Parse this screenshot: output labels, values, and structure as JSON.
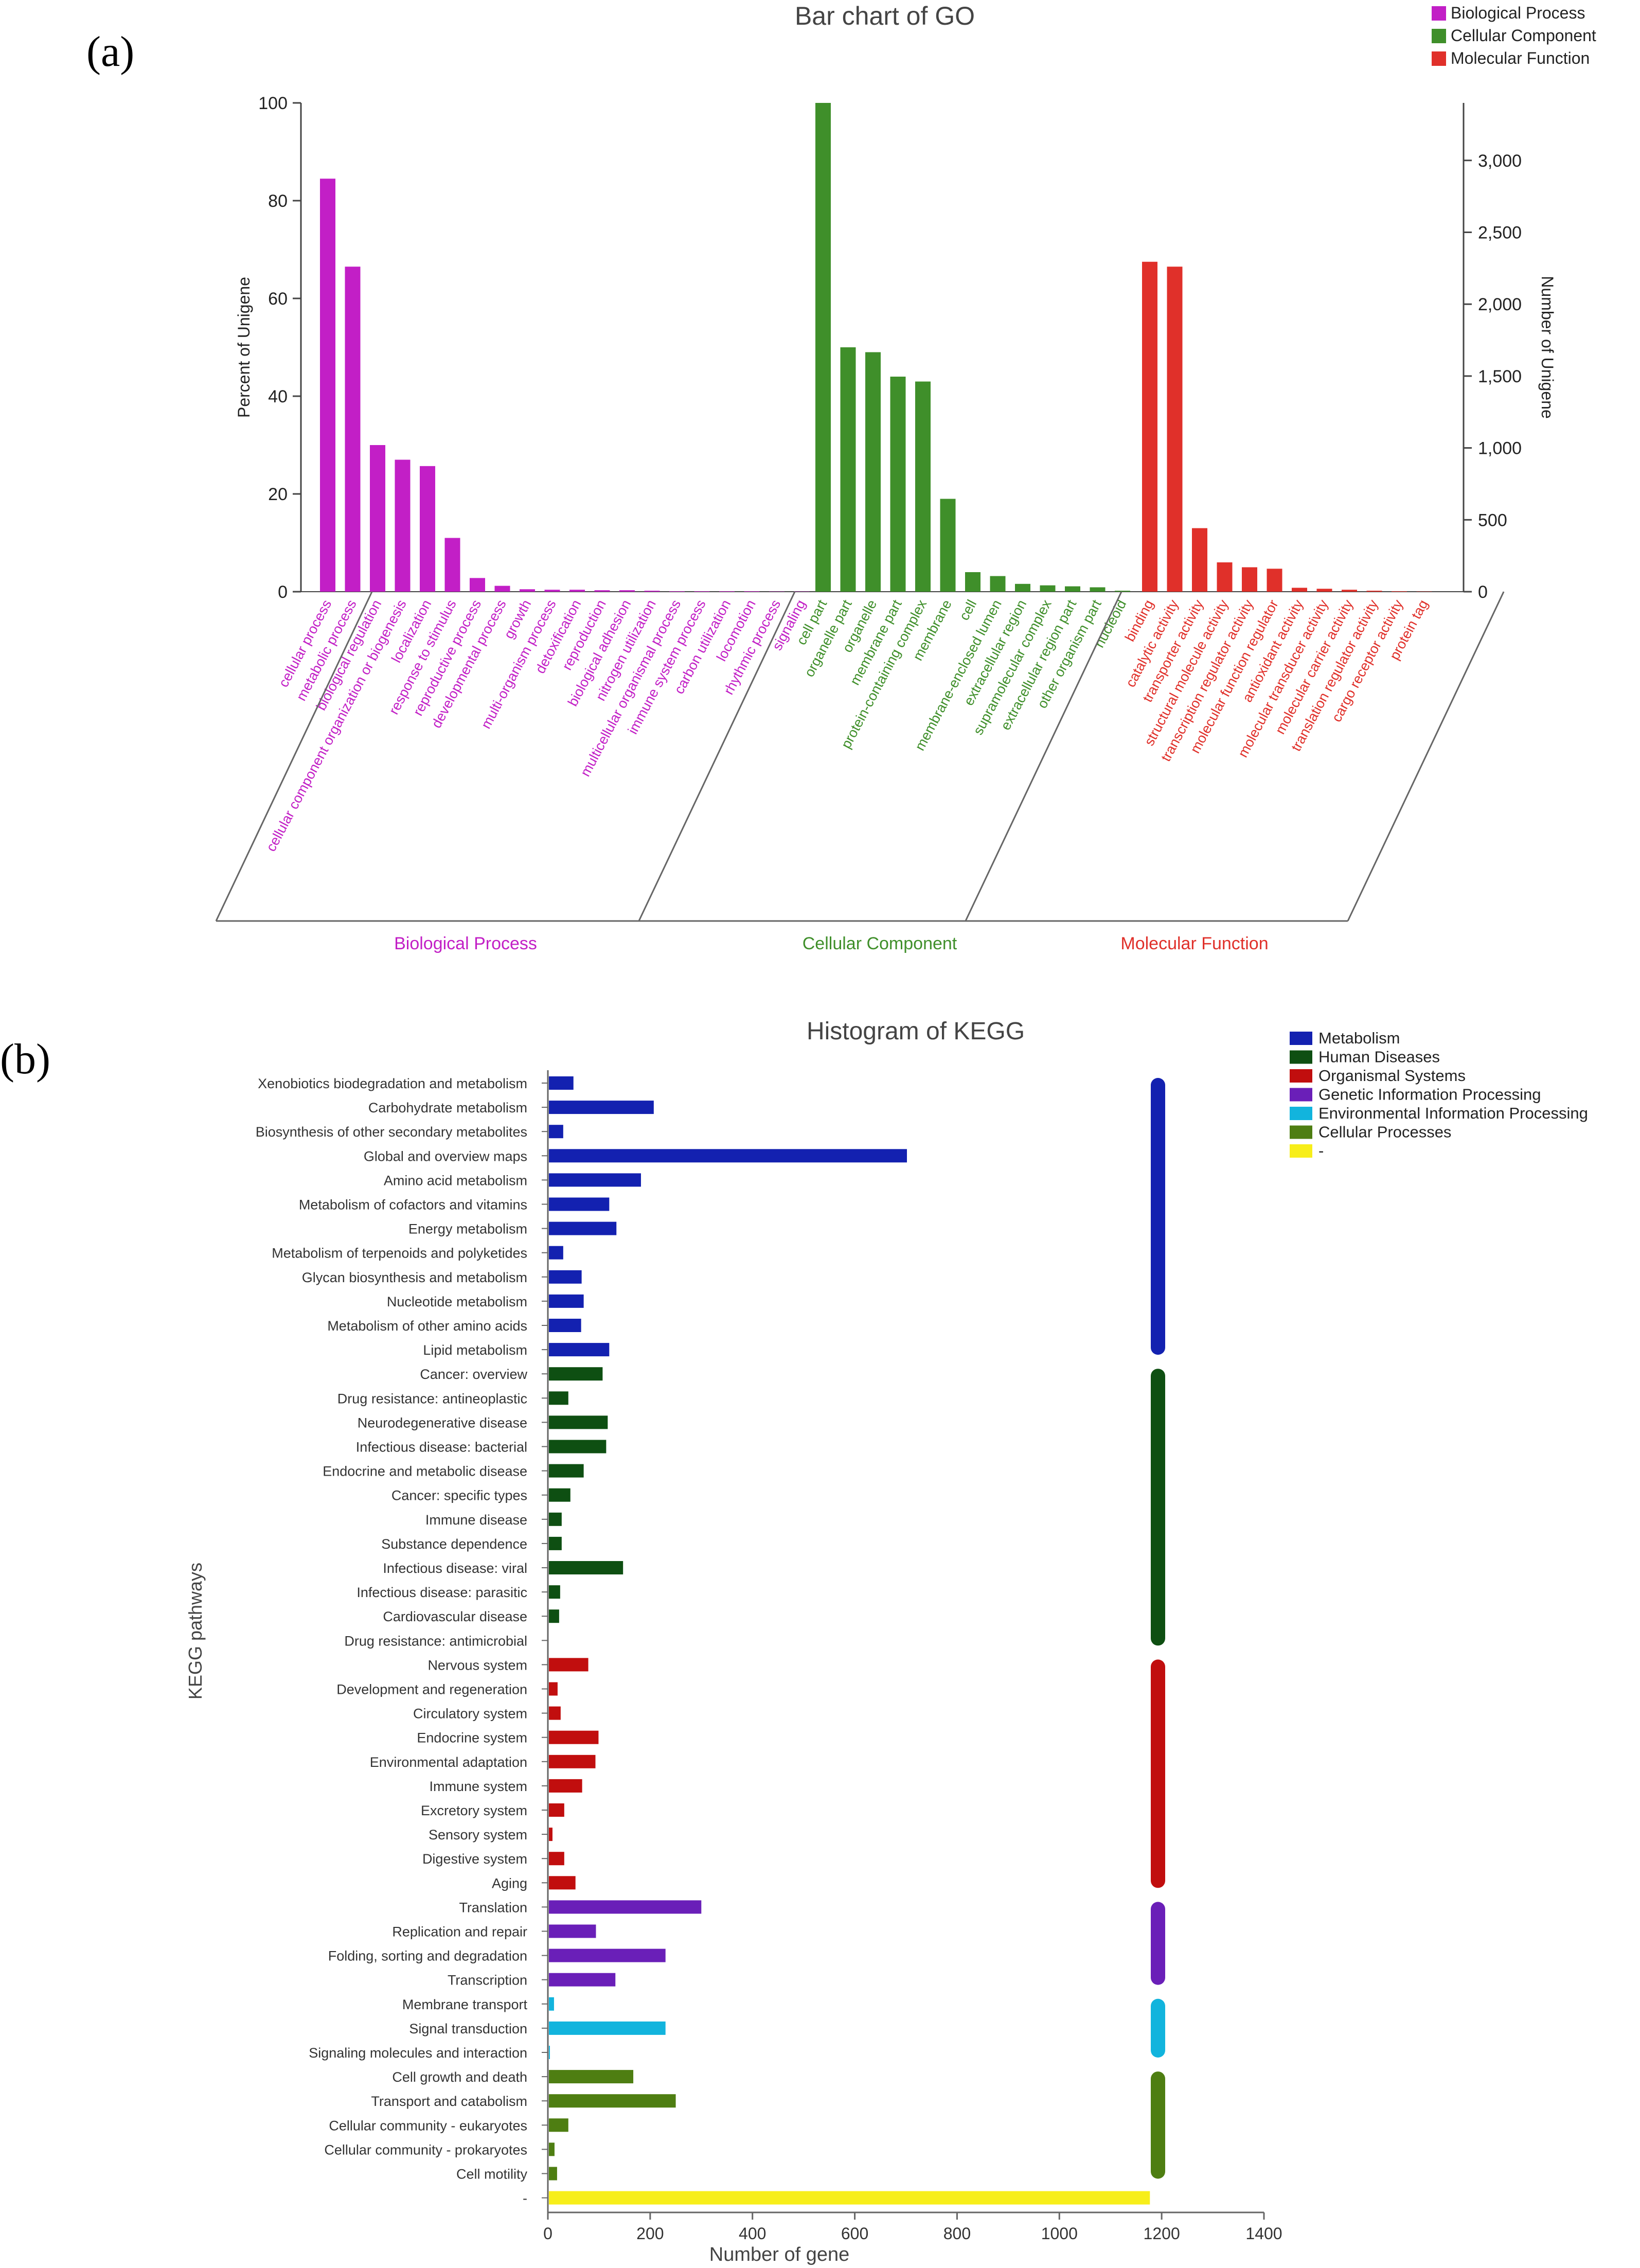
{
  "panels": {
    "a": "(a)",
    "b": "(b)"
  },
  "chart_data": [
    {
      "type": "bar",
      "title": "Bar chart of GO",
      "ylabel": "Percent of Unigene",
      "y2label": "Number of Unigene",
      "ylim": [
        0,
        100
      ],
      "yticks": [
        0,
        20,
        40,
        60,
        80,
        100
      ],
      "y2lim": [
        0,
        3400
      ],
      "y2ticks": [
        0,
        500,
        1000,
        1500,
        2000,
        2500,
        3000
      ],
      "y2ticklabels": [
        "0",
        "500",
        "1,000",
        "1,500",
        "2,000",
        "2,500",
        "3,000"
      ],
      "legend": "top-right",
      "groups": [
        {
          "name": "Biological Process",
          "color": "#c21fc6",
          "categories": [
            "cellular process",
            "metabolic process",
            "biological regulation",
            "cellular component organization or biogenesis",
            "localization",
            "response to stimulus",
            "reproductive process",
            "developmental process",
            "growth",
            "multi-organism process",
            "detoxification",
            "reproduction",
            "biological adhesion",
            "nitrogen utilization",
            "multicellular organismal process",
            "immune system process",
            "carbon utilization",
            "locomotion",
            "rhythmic process",
            "signaling"
          ],
          "values": [
            84.5,
            66.5,
            30,
            27,
            25.7,
            11,
            2.8,
            1.2,
            0.5,
            0.4,
            0.4,
            0.3,
            0.3,
            0.2,
            0.1,
            0.1,
            0.1,
            0.1,
            0.05,
            0.05
          ]
        },
        {
          "name": "Cellular Component",
          "color": "#3f8f2a",
          "categories": [
            "cell part",
            "organelle part",
            "organelle",
            "membrane part",
            "protein-containing complex",
            "membrane",
            "cell",
            "membrane-enclosed lumen",
            "extracellular region",
            "supramolecular complex",
            "extracellular region part",
            "other organism part",
            "nucleoid"
          ],
          "values": [
            100,
            50,
            49,
            44,
            43,
            19,
            4,
            3.2,
            1.6,
            1.3,
            1.1,
            0.9,
            0.2
          ]
        },
        {
          "name": "Molecular Function",
          "color": "#e0302a",
          "categories": [
            "binding",
            "catalytic activity",
            "transporter activity",
            "structural molecule activity",
            "transcription regulator activity",
            "molecular function regulator",
            "antioxidant activity",
            "molecular transducer activity",
            "molecular carrier activity",
            "translation regulator activity",
            "cargo receptor activity",
            "protein tag"
          ],
          "values": [
            67.5,
            66.5,
            13,
            6,
            5,
            4.7,
            0.8,
            0.6,
            0.4,
            0.2,
            0.1,
            0.05
          ]
        }
      ]
    },
    {
      "type": "bar",
      "orientation": "horizontal",
      "title": "Histogram of KEGG",
      "xlabel": "Number of gene",
      "ylabel": "KEGG pathways",
      "xlim": [
        0,
        1400
      ],
      "xticks": [
        0,
        200,
        400,
        600,
        800,
        1000,
        1200,
        1400
      ],
      "legend": "top-right",
      "groups": [
        {
          "name": "Metabolism",
          "color": "#1321b0",
          "categories": [
            "Xenobiotics biodegradation and metabolism",
            "Carbohydrate metabolism",
            "Biosynthesis of other secondary metabolites",
            "Global and overview maps",
            "Amino acid metabolism",
            "Metabolism of cofactors and vitamins",
            "Energy metabolism",
            "Metabolism of terpenoids and polyketides",
            "Glycan biosynthesis and metabolism",
            "Nucleotide metabolism",
            "Metabolism of other amino acids",
            "Lipid metabolism"
          ],
          "values": [
            48,
            205,
            28,
            700,
            180,
            118,
            132,
            28,
            64,
            68,
            63,
            118
          ]
        },
        {
          "name": "Human Diseases",
          "color": "#0e4f12",
          "categories": [
            "Cancer: overview",
            "Drug resistance: antineoplastic",
            "Neurodegenerative disease",
            "Infectious disease: bacterial",
            "Endocrine and metabolic disease",
            "Cancer: specific types",
            "Immune disease",
            "Substance dependence",
            "Infectious disease: viral",
            "Infectious disease: parasitic",
            "Cardiovascular disease",
            "Drug resistance: antimicrobial"
          ],
          "values": [
            105,
            38,
            115,
            112,
            68,
            42,
            25,
            25,
            145,
            22,
            20,
            0
          ]
        },
        {
          "name": "Organismal Systems",
          "color": "#c10e0e",
          "categories": [
            "Nervous system",
            "Development and regeneration",
            "Circulatory system",
            "Endocrine system",
            "Environmental adaptation",
            "Immune system",
            "Excretory system",
            "Sensory system",
            "Digestive system",
            "Aging"
          ],
          "values": [
            77,
            17,
            23,
            97,
            91,
            65,
            30,
            7,
            30,
            52
          ]
        },
        {
          "name": "Genetic Information Processing",
          "color": "#6a1fb8",
          "categories": [
            "Translation",
            "Replication and repair",
            "Folding, sorting and degradation",
            "Transcription"
          ],
          "values": [
            298,
            92,
            228,
            130
          ]
        },
        {
          "name": "Environmental Information Processing",
          "color": "#12b4dd",
          "categories": [
            "Membrane transport",
            "Signal transduction",
            "Signaling molecules and interaction"
          ],
          "values": [
            10,
            228,
            2
          ]
        },
        {
          "name": "Cellular Processes",
          "color": "#4e7e12",
          "categories": [
            "Cell growth and death",
            "Transport and catabolism",
            "Cellular community - eukaryotes",
            "Cellular community - prokaryotes",
            "Cell motility"
          ],
          "values": [
            165,
            248,
            38,
            11,
            16
          ]
        },
        {
          "name": "-",
          "color": "#f7ee1a",
          "categories": [
            "-"
          ],
          "values": [
            1175
          ]
        }
      ]
    }
  ]
}
